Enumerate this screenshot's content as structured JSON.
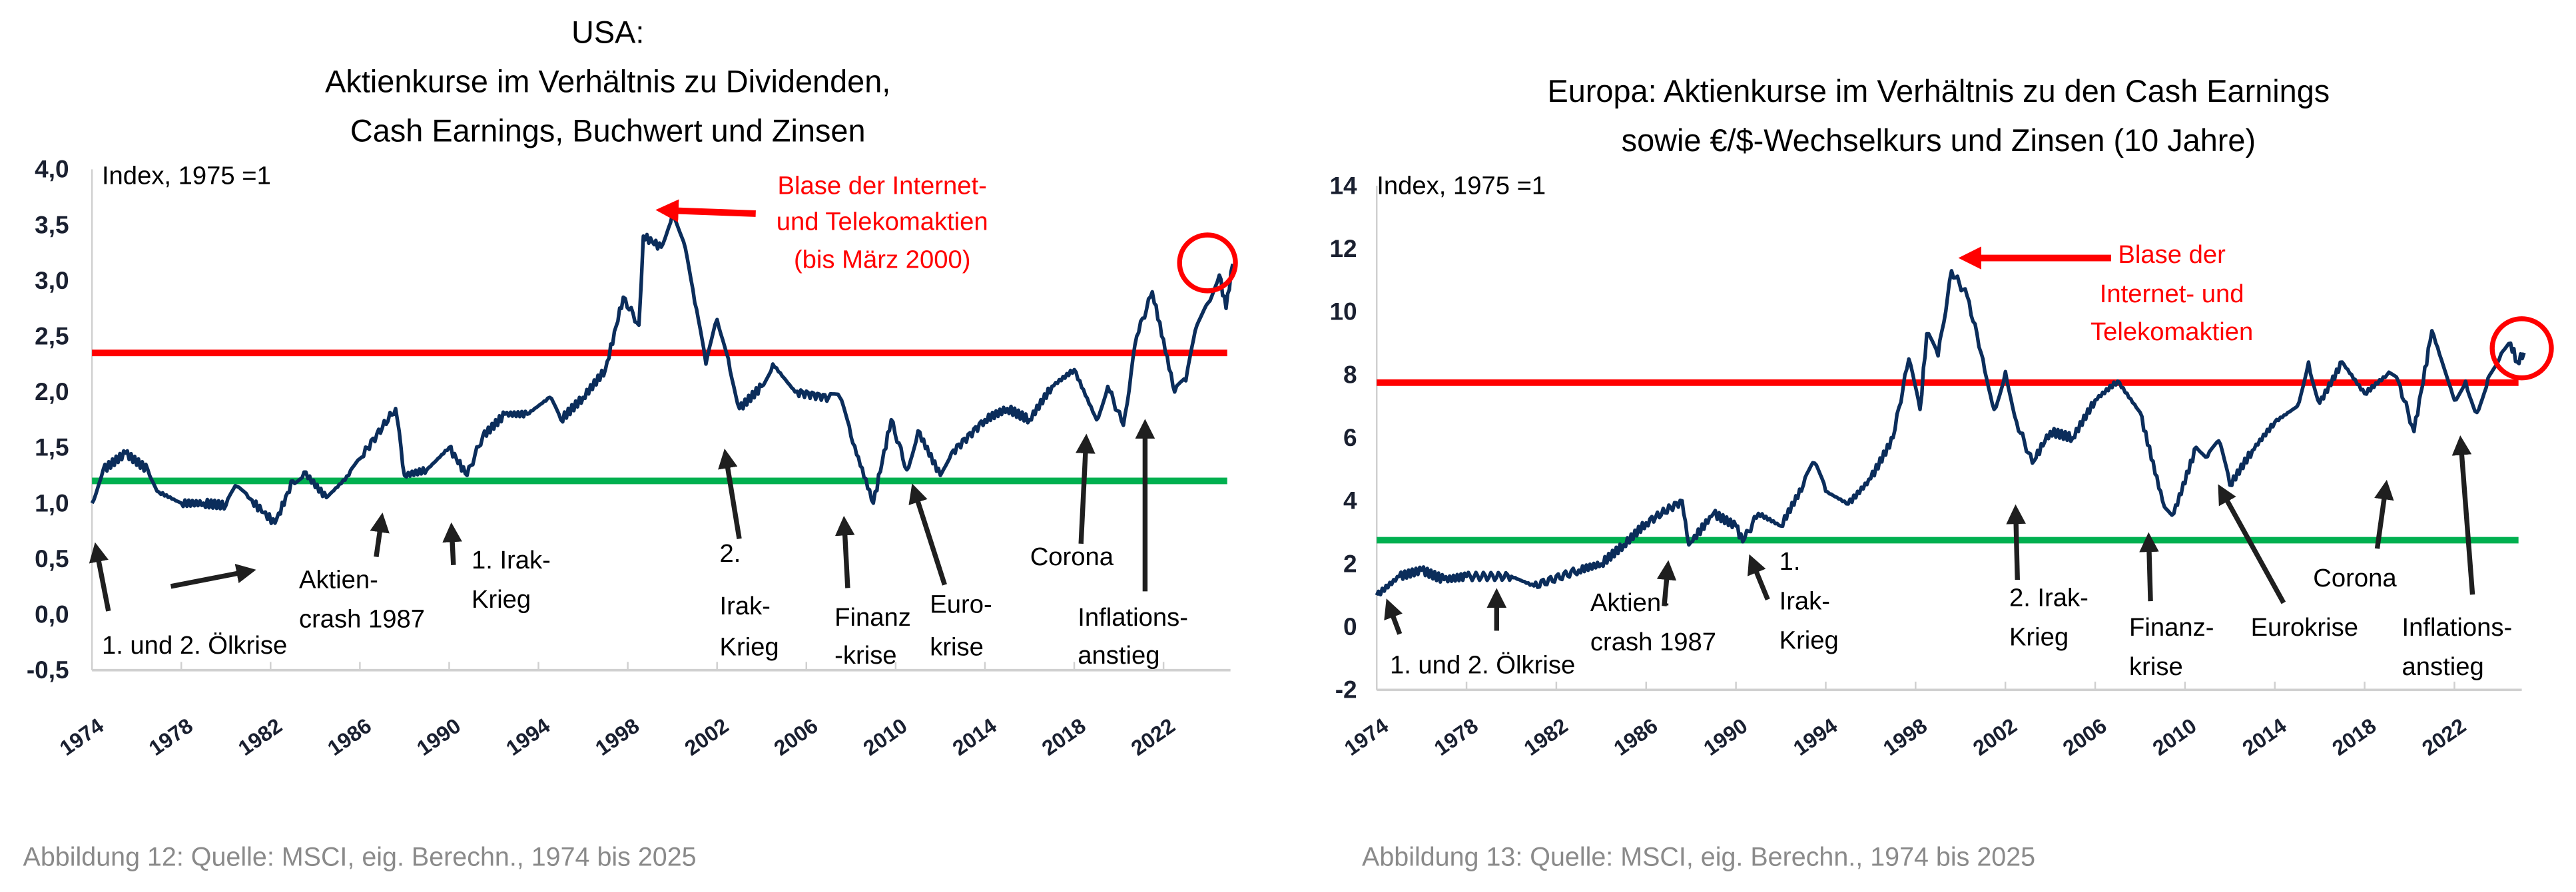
{
  "chart_data": [
    {
      "type": "line",
      "title": [
        "USA:",
        "Aktienkurse im Verhältnis zu Dividenden,",
        "Cash Earnings, Buchwert und Zinsen"
      ],
      "ylabel": "Index, 1975 =1",
      "ylim": [
        -0.5,
        4.0
      ],
      "xlim": [
        1974,
        2025
      ],
      "yticks": [
        "4,0",
        "3,5",
        "3,0",
        "2,5",
        "2,0",
        "1,5",
        "1,0",
        "0,5",
        "0,0",
        "-0,5"
      ],
      "ytick_values": [
        4.0,
        3.5,
        3.0,
        2.5,
        2.0,
        1.5,
        1.0,
        0.5,
        0.0,
        -0.5
      ],
      "xticks": [
        "1974",
        "1978",
        "1982",
        "1986",
        "1990",
        "1994",
        "1998",
        "2002",
        "2006",
        "2010",
        "2014",
        "2018",
        "2022"
      ],
      "reference_lines": [
        {
          "color": "#ff0000",
          "value": 2.35
        },
        {
          "color": "#00b050",
          "value": 1.2
        }
      ],
      "series_color": "#0b2d5b",
      "x": [
        1974,
        1974.5,
        1975.5,
        1976.5,
        1977,
        1978,
        1979,
        1980,
        1980.5,
        1981,
        1982.2,
        1983,
        1983.5,
        1984.5,
        1985.5,
        1986,
        1987.6,
        1988,
        1989,
        1990,
        1990.8,
        1991.5,
        1992.5,
        1993.5,
        1994.5,
        1995,
        1996,
        1997,
        1997.8,
        1998.5,
        1998.7,
        1999.5,
        2000,
        2000.5,
        2001,
        2001.5,
        2002,
        2002.5,
        2003,
        2004,
        2004.5,
        2005.5,
        2007,
        2007.5,
        2008,
        2009,
        2009.8,
        2010.5,
        2011,
        2012,
        2012.5,
        2014,
        2015,
        2016,
        2017,
        2018,
        2019,
        2019.5,
        2020.2,
        2020.8,
        2021.5,
        2022.5,
        2023,
        2023.5,
        2024,
        2024.5,
        2024.8,
        2025.1
      ],
      "values": [
        1.0,
        1.3,
        1.45,
        1.3,
        1.1,
        1.0,
        1.0,
        0.98,
        1.15,
        1.05,
        0.82,
        1.2,
        1.28,
        1.05,
        1.25,
        1.4,
        1.85,
        1.25,
        1.3,
        1.5,
        1.25,
        1.6,
        1.8,
        1.8,
        1.95,
        1.75,
        1.95,
        2.2,
        2.85,
        2.6,
        3.4,
        3.3,
        3.6,
        3.35,
        2.8,
        2.25,
        2.65,
        2.3,
        1.85,
        2.05,
        2.25,
        2.0,
        1.95,
        1.95,
        1.6,
        1.0,
        1.75,
        1.3,
        1.65,
        1.25,
        1.45,
        1.75,
        1.85,
        1.75,
        2.05,
        2.2,
        1.75,
        2.05,
        1.7,
        2.5,
        2.9,
        2.0,
        2.1,
        2.6,
        2.8,
        3.05,
        2.75,
        3.15
      ],
      "annotations": {
        "red": [
          "Blase der Internet-",
          "und Telekomaktien",
          "(bis März 2000)"
        ],
        "oil": "1. und 2. Ölkrise",
        "crash": [
          "Aktien-",
          "crash 1987"
        ],
        "irak1": [
          "1. Irak-",
          "Krieg"
        ],
        "irak2": [
          "2.",
          "Irak-",
          "Krieg"
        ],
        "finanz": [
          "Finanz",
          "-krise"
        ],
        "euro": [
          "Euro-",
          "krise"
        ],
        "corona": "Corona",
        "infl": [
          "Inflations-",
          "anstieg"
        ]
      },
      "caption": "Abbildung 12: Quelle: MSCI, eig. Berechn., 1974 bis 2025"
    },
    {
      "type": "line",
      "title": [
        "Europa: Aktienkurse im Verhältnis zu den Cash Earnings",
        "sowie €/$-Wechselkurs und Zinsen (10 Jahre)"
      ],
      "ylabel": "Index, 1975 =1",
      "ylim": [
        -2,
        14
      ],
      "xlim": [
        1974,
        2025
      ],
      "yticks": [
        "14",
        "12",
        "10",
        "8",
        "6",
        "4",
        "2",
        "0",
        "-2"
      ],
      "ytick_values": [
        14,
        12,
        10,
        8,
        6,
        4,
        2,
        0,
        -2
      ],
      "xticks": [
        "1974",
        "1978",
        "1982",
        "1986",
        "1990",
        "1994",
        "1998",
        "2002",
        "2006",
        "2010",
        "2014",
        "2018",
        "2022"
      ],
      "reference_lines": [
        {
          "color": "#ff0000",
          "value": 7.75
        },
        {
          "color": "#00b050",
          "value": 2.75
        }
      ],
      "series_color": "#0b2d5b",
      "x": [
        1974,
        1975,
        1976,
        1977,
        1978,
        1980,
        1981,
        1983,
        1984,
        1985,
        1986,
        1987.6,
        1987.9,
        1989,
        1990,
        1990.3,
        1991,
        1992,
        1993,
        1993.5,
        1994,
        1995,
        1996,
        1997,
        1997.7,
        1998.2,
        1998.5,
        1999,
        1999.6,
        2000.3,
        2001,
        2001.5,
        2002,
        2002.5,
        2003.2,
        2004,
        2005,
        2006,
        2007,
        2008,
        2009,
        2009.5,
        2010.5,
        2011,
        2011.5,
        2012,
        2013,
        2014,
        2015,
        2015.5,
        2016,
        2017,
        2018,
        2019,
        2019.5,
        2020.2,
        2021,
        2022,
        2022.5,
        2023,
        2023.5,
        2024,
        2024.5,
        2024.8,
        2025.1
      ],
      "values": [
        1.0,
        1.6,
        1.8,
        1.5,
        1.6,
        1.6,
        1.3,
        1.8,
        2.0,
        2.6,
        3.3,
        4.0,
        2.6,
        3.6,
        3.2,
        2.7,
        3.6,
        3.2,
        4.5,
        5.2,
        4.3,
        3.9,
        4.7,
        6.0,
        8.5,
        6.9,
        9.3,
        8.6,
        11.3,
        10.5,
        8.5,
        6.9,
        8.1,
        6.5,
        5.2,
        6.2,
        6.0,
        7.2,
        7.8,
        6.8,
        4.0,
        3.6,
        5.7,
        5.4,
        5.9,
        4.5,
        5.6,
        6.5,
        7.0,
        8.4,
        7.1,
        8.4,
        7.4,
        8.0,
        7.8,
        6.2,
        9.4,
        7.2,
        7.8,
        6.8,
        7.9,
        8.5,
        9.0,
        8.4,
        8.7
      ],
      "annotations": {
        "red": [
          "Blase der",
          "Internet- und",
          "Telekomaktien"
        ],
        "oil": "1. und 2. Ölkrise",
        "crash": [
          "Aktien-",
          "crash 1987"
        ],
        "irak1": [
          "1.",
          "Irak-",
          "Krieg"
        ],
        "irak2": [
          "2. Irak-",
          "Krieg"
        ],
        "finanz": [
          "Finanz-",
          "krise"
        ],
        "euro": "Eurokrise",
        "corona": "Corona",
        "infl": [
          "Inflations-",
          "anstieg"
        ]
      },
      "caption": "Abbildung 13: Quelle: MSCI, eig. Berechn., 1974 bis 2025"
    }
  ]
}
